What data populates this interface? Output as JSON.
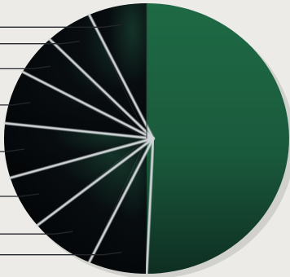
{
  "chart_data": {
    "type": "pie",
    "categories": [
      "",
      "",
      "",
      "",
      "",
      "",
      "",
      "",
      ""
    ],
    "values": [
      50,
      6.6,
      7.3,
      6.4,
      6.5,
      6.4,
      4.9,
      5.3,
      6.6
    ],
    "legend": "none",
    "leader_lines": true,
    "colors": {
      "background": "#ecebe7",
      "major_slice": "#1e6a45",
      "minor_slices": "#07090d",
      "separators": "#d2d6d8",
      "leader_lines": "#23262a"
    }
  }
}
